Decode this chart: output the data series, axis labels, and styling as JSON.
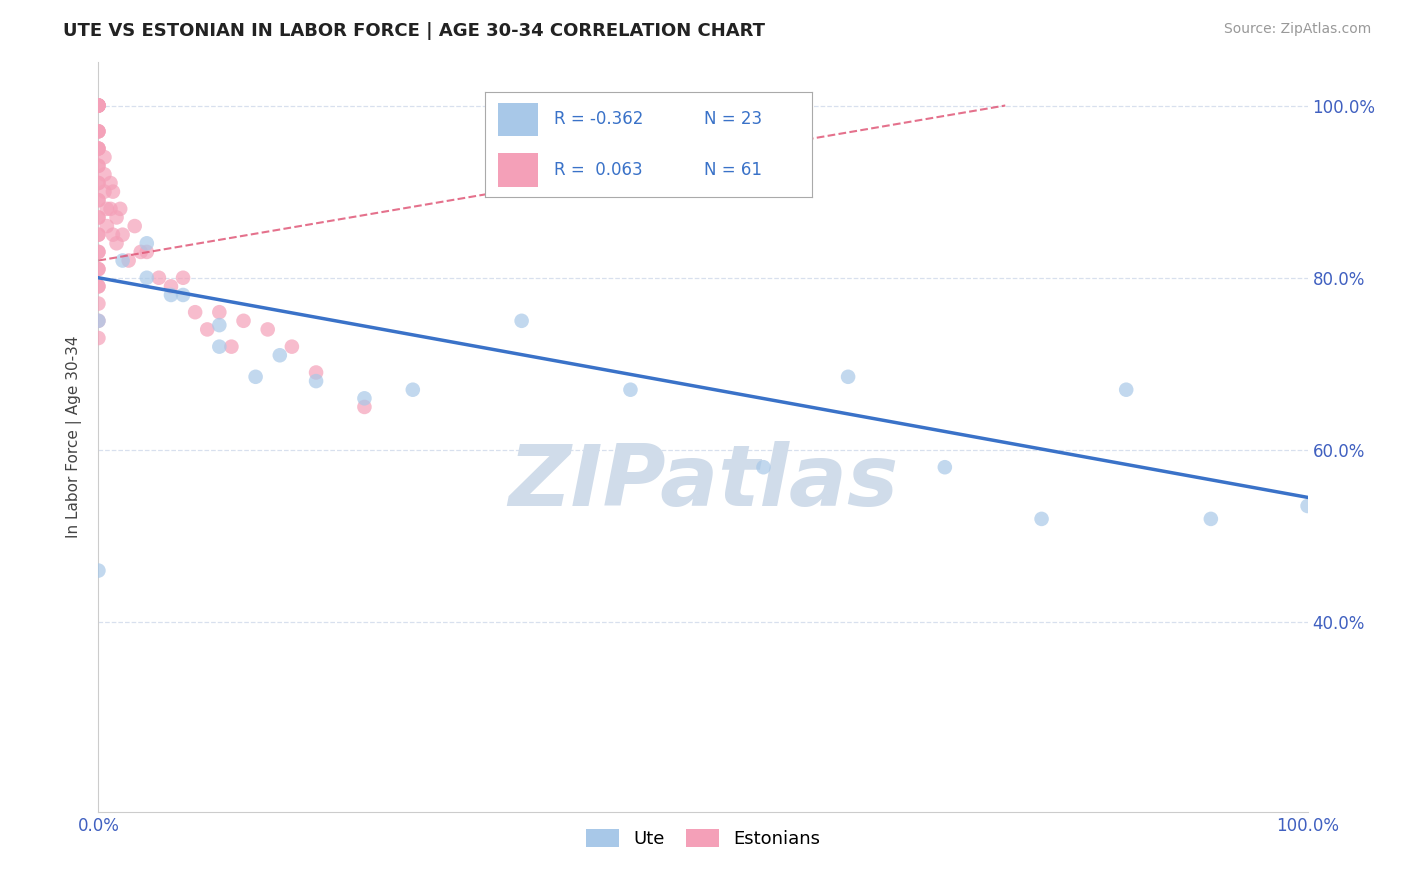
{
  "title": "UTE VS ESTONIAN IN LABOR FORCE | AGE 30-34 CORRELATION CHART",
  "source_text": "Source: ZipAtlas.com",
  "ylabel": "In Labor Force | Age 30-34",
  "xlim": [
    0.0,
    1.0
  ],
  "ylim": [
    0.18,
    1.05
  ],
  "xtick_positions": [
    0.0,
    0.2,
    0.4,
    0.6,
    0.8,
    1.0
  ],
  "xticklabels": [
    "0.0%",
    "",
    "",
    "",
    "",
    "100.0%"
  ],
  "ytick_positions": [
    0.4,
    0.6,
    0.8,
    1.0
  ],
  "ytick_labels": [
    "40.0%",
    "60.0%",
    "80.0%",
    "100.0%"
  ],
  "ute_x": [
    0.0,
    0.0,
    0.02,
    0.04,
    0.04,
    0.06,
    0.07,
    0.1,
    0.1,
    0.13,
    0.15,
    0.18,
    0.22,
    0.26,
    0.35,
    0.44,
    0.55,
    0.62,
    0.7,
    0.78,
    0.85,
    0.92,
    1.0
  ],
  "ute_y": [
    0.46,
    0.75,
    0.82,
    0.84,
    0.8,
    0.78,
    0.78,
    0.72,
    0.745,
    0.685,
    0.71,
    0.68,
    0.66,
    0.67,
    0.75,
    0.67,
    0.58,
    0.685,
    0.58,
    0.52,
    0.67,
    0.52,
    0.535
  ],
  "estonian_x": [
    0.0,
    0.0,
    0.0,
    0.0,
    0.0,
    0.0,
    0.0,
    0.0,
    0.0,
    0.0,
    0.0,
    0.0,
    0.0,
    0.0,
    0.0,
    0.0,
    0.0,
    0.0,
    0.0,
    0.0,
    0.0,
    0.0,
    0.0,
    0.0,
    0.0,
    0.0,
    0.0,
    0.0,
    0.0,
    0.0,
    0.0,
    0.0,
    0.005,
    0.005,
    0.005,
    0.007,
    0.007,
    0.01,
    0.01,
    0.012,
    0.012,
    0.015,
    0.015,
    0.018,
    0.02,
    0.025,
    0.03,
    0.035,
    0.04,
    0.05,
    0.06,
    0.07,
    0.08,
    0.09,
    0.1,
    0.11,
    0.12,
    0.14,
    0.16,
    0.18,
    0.22
  ],
  "estonian_y": [
    1.0,
    1.0,
    1.0,
    1.0,
    1.0,
    1.0,
    1.0,
    0.97,
    0.97,
    0.97,
    0.95,
    0.95,
    0.93,
    0.93,
    0.91,
    0.91,
    0.89,
    0.89,
    0.87,
    0.87,
    0.85,
    0.85,
    0.83,
    0.83,
    0.81,
    0.81,
    0.79,
    0.79,
    0.77,
    0.75,
    0.73,
    0.95,
    0.94,
    0.92,
    0.9,
    0.88,
    0.86,
    0.91,
    0.88,
    0.85,
    0.9,
    0.87,
    0.84,
    0.88,
    0.85,
    0.82,
    0.86,
    0.83,
    0.83,
    0.8,
    0.79,
    0.8,
    0.76,
    0.74,
    0.76,
    0.72,
    0.75,
    0.74,
    0.72,
    0.69,
    0.65
  ],
  "ute_color": "#a8c8e8",
  "estonian_color": "#f4a0b8",
  "ute_trendline_color": "#3a72c8",
  "estonian_trendline_color": "#e05878",
  "ute_trendline_x0": 0.0,
  "ute_trendline_x1": 1.0,
  "ute_trendline_y0": 0.8,
  "ute_trendline_y1": 0.545,
  "estonian_trendline_x0": 0.0,
  "estonian_trendline_x1": 0.75,
  "estonian_trendline_y0": 0.82,
  "estonian_trendline_y1": 1.0,
  "background_color": "#ffffff",
  "grid_color": "#d8e0ee",
  "watermark_text": "ZIPatlas",
  "watermark_color": "#d0dcea",
  "title_fontsize": 13,
  "source_fontsize": 10,
  "tick_fontsize": 12,
  "ylabel_fontsize": 11,
  "scatter_size": 110,
  "scatter_alpha": 0.7,
  "legend_r1": "R = -0.362",
  "legend_n1": "N = 23",
  "legend_r2": "R =  0.063",
  "legend_n2": "N = 61"
}
